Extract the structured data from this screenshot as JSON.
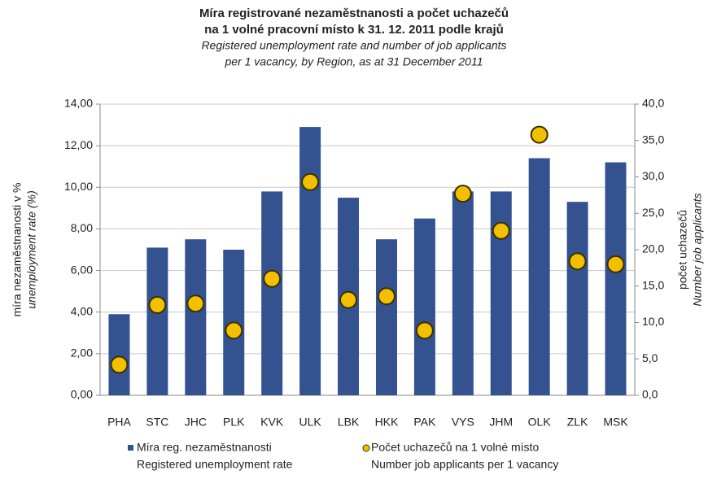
{
  "chart_data": {
    "type": "bar_dot",
    "title": [
      "Míra registrované nezaměstnanosti a počet uchazečů",
      "na 1 volné pracovní místo k 31. 12. 2011 podle krajů"
    ],
    "subtitle": [
      "Registered unemployment rate and number of job applicants",
      "per 1 vacancy, by Region, as at 31 December 2011"
    ],
    "ylabel": [
      "míra nezaměstnanosti v %",
      "unemployment rate (%)"
    ],
    "y2label": [
      "počet uchazečů",
      "Number job applicants"
    ],
    "categories": [
      "PHA",
      "STC",
      "JHC",
      "PLK",
      "KVK",
      "ULK",
      "LBK",
      "HKK",
      "PAK",
      "VYS",
      "JHM",
      "OLK",
      "ZLK",
      "MSK"
    ],
    "series": [
      {
        "name": "Míra reg. nezaměstnanosti",
        "name_en": "Registered unemployment rate",
        "color": "#34528f",
        "values": [
          3.9,
          7.1,
          7.5,
          7.0,
          9.8,
          12.9,
          9.5,
          7.5,
          8.5,
          9.8,
          9.8,
          11.4,
          9.3,
          11.2
        ]
      },
      {
        "name": "Počet uchazečů na 1 volné místo",
        "name_en": "Number job applicants per 1 vacancy",
        "color": "#f2c000",
        "axis": "y2",
        "values": [
          4.2,
          12.4,
          12.6,
          8.9,
          16.0,
          29.3,
          13.1,
          13.6,
          8.9,
          27.7,
          22.6,
          35.8,
          18.4,
          18.0
        ]
      }
    ],
    "ylim": [
      0,
      14
    ],
    "yticks": [
      {
        "value": 0,
        "label": "0,00"
      },
      {
        "value": 2,
        "label": "2,00"
      },
      {
        "value": 4,
        "label": "4,00"
      },
      {
        "value": 6,
        "label": "6,00"
      },
      {
        "value": 8,
        "label": "8,00"
      },
      {
        "value": 10,
        "label": "10,00"
      },
      {
        "value": 12,
        "label": "12,00"
      },
      {
        "value": 14,
        "label": "14,00"
      }
    ],
    "y2lim": [
      0,
      40
    ],
    "y2ticks": [
      {
        "value": 0,
        "label": "0,0"
      },
      {
        "value": 5,
        "label": "5,0"
      },
      {
        "value": 10,
        "label": "10,0"
      },
      {
        "value": 15,
        "label": "15,0"
      },
      {
        "value": 20,
        "label": "20,0"
      },
      {
        "value": 25,
        "label": "25,0"
      },
      {
        "value": 30,
        "label": "30,0"
      },
      {
        "value": 35,
        "label": "35,0"
      },
      {
        "value": 40,
        "label": "40,0"
      }
    ],
    "grid": true
  }
}
